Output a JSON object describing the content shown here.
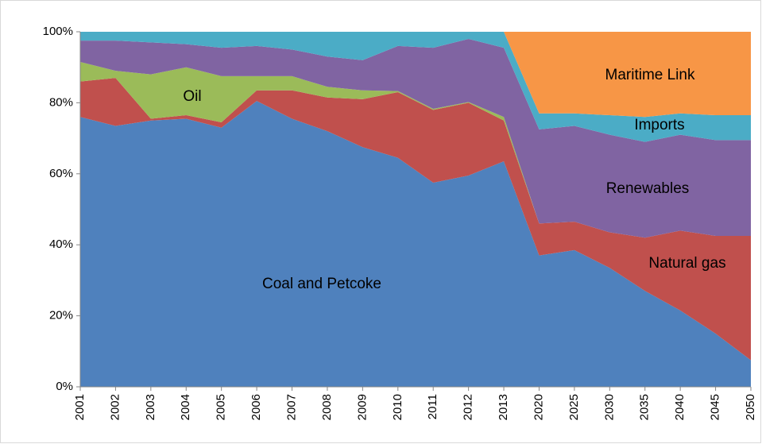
{
  "chart_data": {
    "type": "stacked_area",
    "categories": [
      "2001",
      "2002",
      "2003",
      "2004",
      "2005",
      "2006",
      "2007",
      "2008",
      "2009",
      "2010",
      "2011",
      "2012",
      "2013",
      "2020",
      "2025",
      "2030",
      "2035",
      "2040",
      "2045",
      "2050"
    ],
    "series": [
      {
        "name": "Coal and Petcoke",
        "color": "#4f81bd",
        "values": [
          76,
          73.5,
          75,
          75.5,
          73,
          80.5,
          75.5,
          72,
          67.5,
          64.5,
          57.5,
          59.5,
          63.5,
          37,
          38.5,
          33.5,
          27,
          21.5,
          15,
          7.5
        ]
      },
      {
        "name": "Natural gas",
        "color": "#c0504d",
        "values": [
          10,
          13.5,
          0.5,
          1,
          1.5,
          3,
          8,
          9.5,
          13.5,
          18.5,
          20.5,
          20.5,
          11.5,
          9,
          8,
          10,
          15,
          22.5,
          27.5,
          35
        ]
      },
      {
        "name": "Oil",
        "color": "#9bbb59",
        "values": [
          5.5,
          2,
          12.5,
          13.5,
          13,
          4,
          4,
          3,
          2.5,
          0.3,
          0.3,
          0.2,
          1,
          0,
          0,
          0,
          0,
          0,
          0,
          0
        ]
      },
      {
        "name": "Renewables",
        "color": "#8064a2",
        "values": [
          6,
          8.5,
          9,
          6.5,
          8,
          8.5,
          7.5,
          8.5,
          8.5,
          12.7,
          17.2,
          17.8,
          19.5,
          26.5,
          27,
          27.5,
          27,
          27,
          27,
          27
        ]
      },
      {
        "name": "Imports",
        "color": "#4bacc6",
        "values": [
          2.5,
          2.5,
          3,
          3.5,
          4.5,
          4,
          5,
          7,
          8,
          4,
          4.5,
          2,
          4.5,
          4.5,
          3.5,
          5.5,
          7,
          6,
          7,
          7
        ]
      },
      {
        "name": "Maritime Link",
        "color": "#f79646",
        "values": [
          0,
          0,
          0,
          0,
          0,
          0,
          0,
          0,
          0,
          0,
          0,
          0,
          0,
          23,
          23,
          23.5,
          24,
          23,
          23.5,
          23.5
        ]
      }
    ],
    "ylim": [
      0,
      100
    ],
    "yticks": [
      {
        "value": 0,
        "label": "0%"
      },
      {
        "value": 20,
        "label": "20%"
      },
      {
        "value": 40,
        "label": "40%"
      },
      {
        "value": 60,
        "label": "60%"
      },
      {
        "value": 80,
        "label": "80%"
      },
      {
        "value": 100,
        "label": "100%"
      }
    ],
    "grid": false
  }
}
